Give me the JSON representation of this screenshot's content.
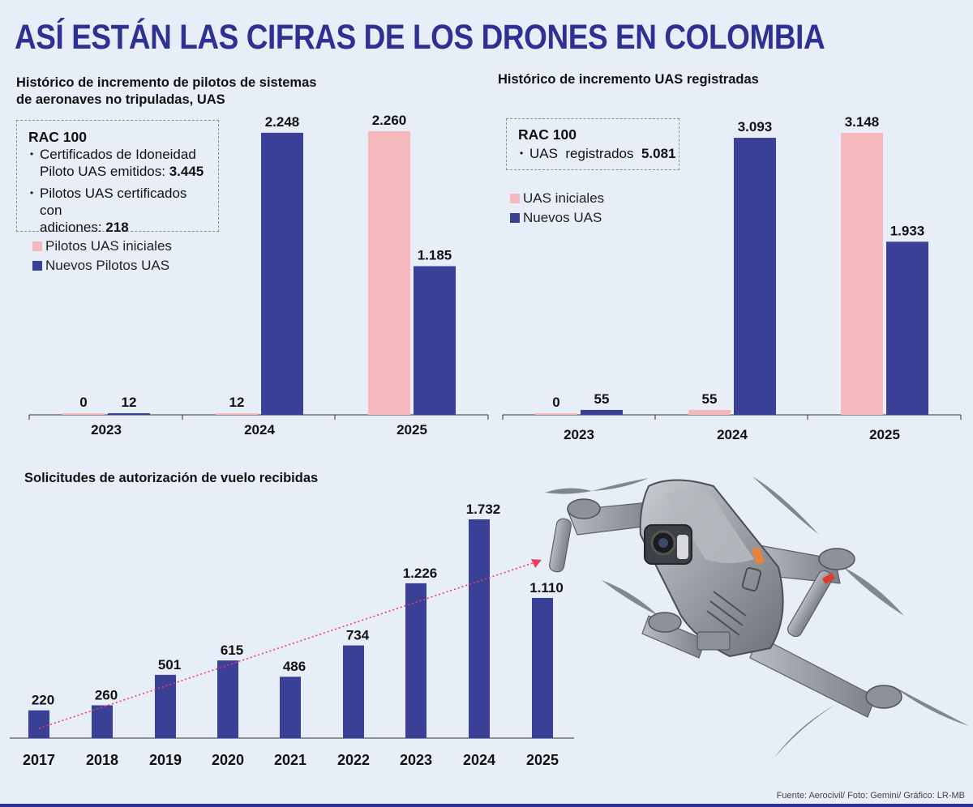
{
  "title": "ASÍ ESTÁN LAS CIFRAS DE LOS DRONES EN COLOMBIA",
  "colors": {
    "title": "#2e3192",
    "initial": "#f4b8bd",
    "new": "#3b4097",
    "trend": "#e8405a"
  },
  "footer": "Fuente: Aerocivil/ Foto: Gemini/ Gráfico: LR-MB",
  "pilots": {
    "subtitle_line1": "Histórico de incremento de pilotos de sistemas",
    "subtitle_line2": "de aeronaves no tripuladas, UAS",
    "box": {
      "head": "RAC 100",
      "item1_line1": "Certificados de Idoneidad",
      "item1_line2": "Piloto UAS emitidos: ",
      "item1_value": "3.445",
      "item2_line1": "Pilotos UAS certificados con",
      "item2_line2": "adiciones: ",
      "item2_value": "218"
    },
    "legend_initial": "Pilotos UAS iniciales",
    "legend_new": "Nuevos Pilotos UAS"
  },
  "uas": {
    "subtitle": "Histórico de incremento UAS registradas",
    "box": {
      "head": "RAC 100",
      "item1_label": "UAS  registrados  ",
      "item1_value": "5.081"
    },
    "legend_initial": "UAS iniciales",
    "legend_new": "Nuevos UAS"
  },
  "requests": {
    "subtitle": "Solicitudes de autorización de vuelo recibidas"
  },
  "drone_photo": {
    "icon": "drone-icon"
  },
  "chart_data": [
    {
      "type": "bar",
      "title": "Histórico de incremento de pilotos de sistemas de aeronaves no tripuladas, UAS",
      "categories": [
        "2023",
        "2024",
        "2025"
      ],
      "series": [
        {
          "name": "Pilotos UAS iniciales",
          "values": [
            0,
            12,
            2260
          ],
          "labels": [
            "0",
            "12",
            "2.260"
          ]
        },
        {
          "name": "Nuevos Pilotos UAS",
          "values": [
            12,
            2248,
            1185
          ],
          "labels": [
            "12",
            "2.248",
            "1.185"
          ]
        }
      ],
      "ylim": [
        0,
        2260
      ]
    },
    {
      "type": "bar",
      "title": "Histórico de incremento UAS registradas",
      "categories": [
        "2023",
        "2024",
        "2025"
      ],
      "series": [
        {
          "name": "UAS iniciales",
          "values": [
            0,
            55,
            3148
          ],
          "labels": [
            "0",
            "55",
            "3.148"
          ]
        },
        {
          "name": "Nuevos UAS",
          "values": [
            55,
            3093,
            1933
          ],
          "labels": [
            "55",
            "3.093",
            "1.933"
          ]
        }
      ],
      "ylim": [
        0,
        3148
      ]
    },
    {
      "type": "bar",
      "title": "Solicitudes de autorización de vuelo recibidas",
      "categories": [
        "2017",
        "2018",
        "2019",
        "2020",
        "2021",
        "2022",
        "2023",
        "2024",
        "2025"
      ],
      "values": [
        220,
        260,
        501,
        615,
        486,
        734,
        1226,
        1732,
        1110
      ],
      "labels": [
        "220",
        "260",
        "501",
        "615",
        "486",
        "734",
        "1.226",
        "1.732",
        "1.110"
      ],
      "ylim": [
        0,
        1732
      ],
      "trend_line": "dotted arrow rising left to right"
    }
  ]
}
